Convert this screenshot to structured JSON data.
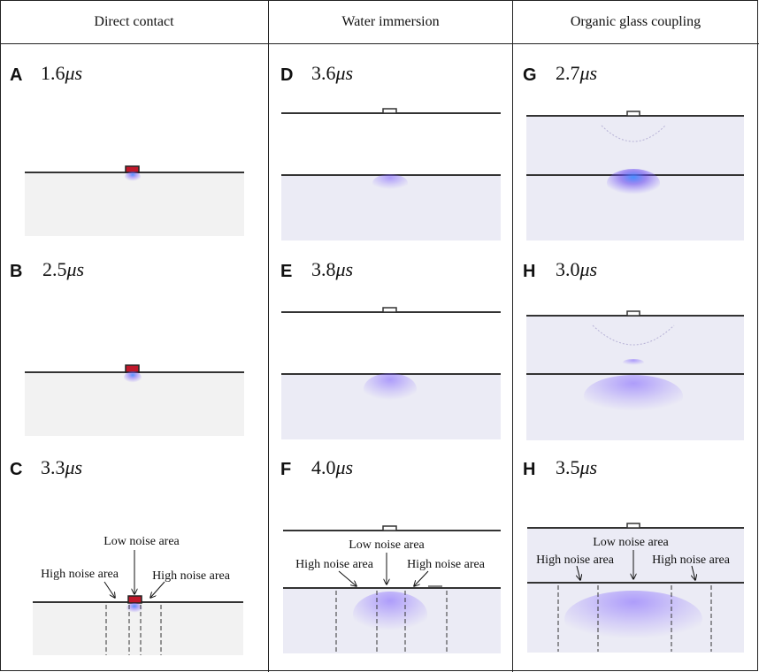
{
  "columns": [
    {
      "id": "direct",
      "title": "Direct contact"
    },
    {
      "id": "water",
      "title": "Water immersion"
    },
    {
      "id": "glass",
      "title": "Organic glass coupling"
    }
  ],
  "panels": [
    {
      "letter": "A",
      "time_value": "1.6",
      "time_unit": "μs"
    },
    {
      "letter": "B",
      "time_value": "2.5",
      "time_unit": "μs"
    },
    {
      "letter": "C",
      "time_value": "3.3",
      "time_unit": "μs"
    },
    {
      "letter": "D",
      "time_value": "3.6",
      "time_unit": "μs"
    },
    {
      "letter": "E",
      "time_value": "3.8",
      "time_unit": "μs"
    },
    {
      "letter": "F",
      "time_value": "4.0",
      "time_unit": "μs"
    },
    {
      "letter": "G",
      "time_value": "2.7",
      "time_unit": "μs"
    },
    {
      "letter": "H",
      "time_value": "3.0",
      "time_unit": "μs"
    },
    {
      "letter": "H",
      "time_value": "3.5",
      "time_unit": "μs"
    }
  ],
  "annotations": {
    "low_noise": "Low noise area",
    "high_noise": "High noise area"
  },
  "colors": {
    "specimen": "#f2f2f2",
    "coupling_medium": "#ebebf5",
    "wave": "#7b5cff",
    "wave_core": "#3f8cff",
    "transducer_active": "#c0182b"
  }
}
